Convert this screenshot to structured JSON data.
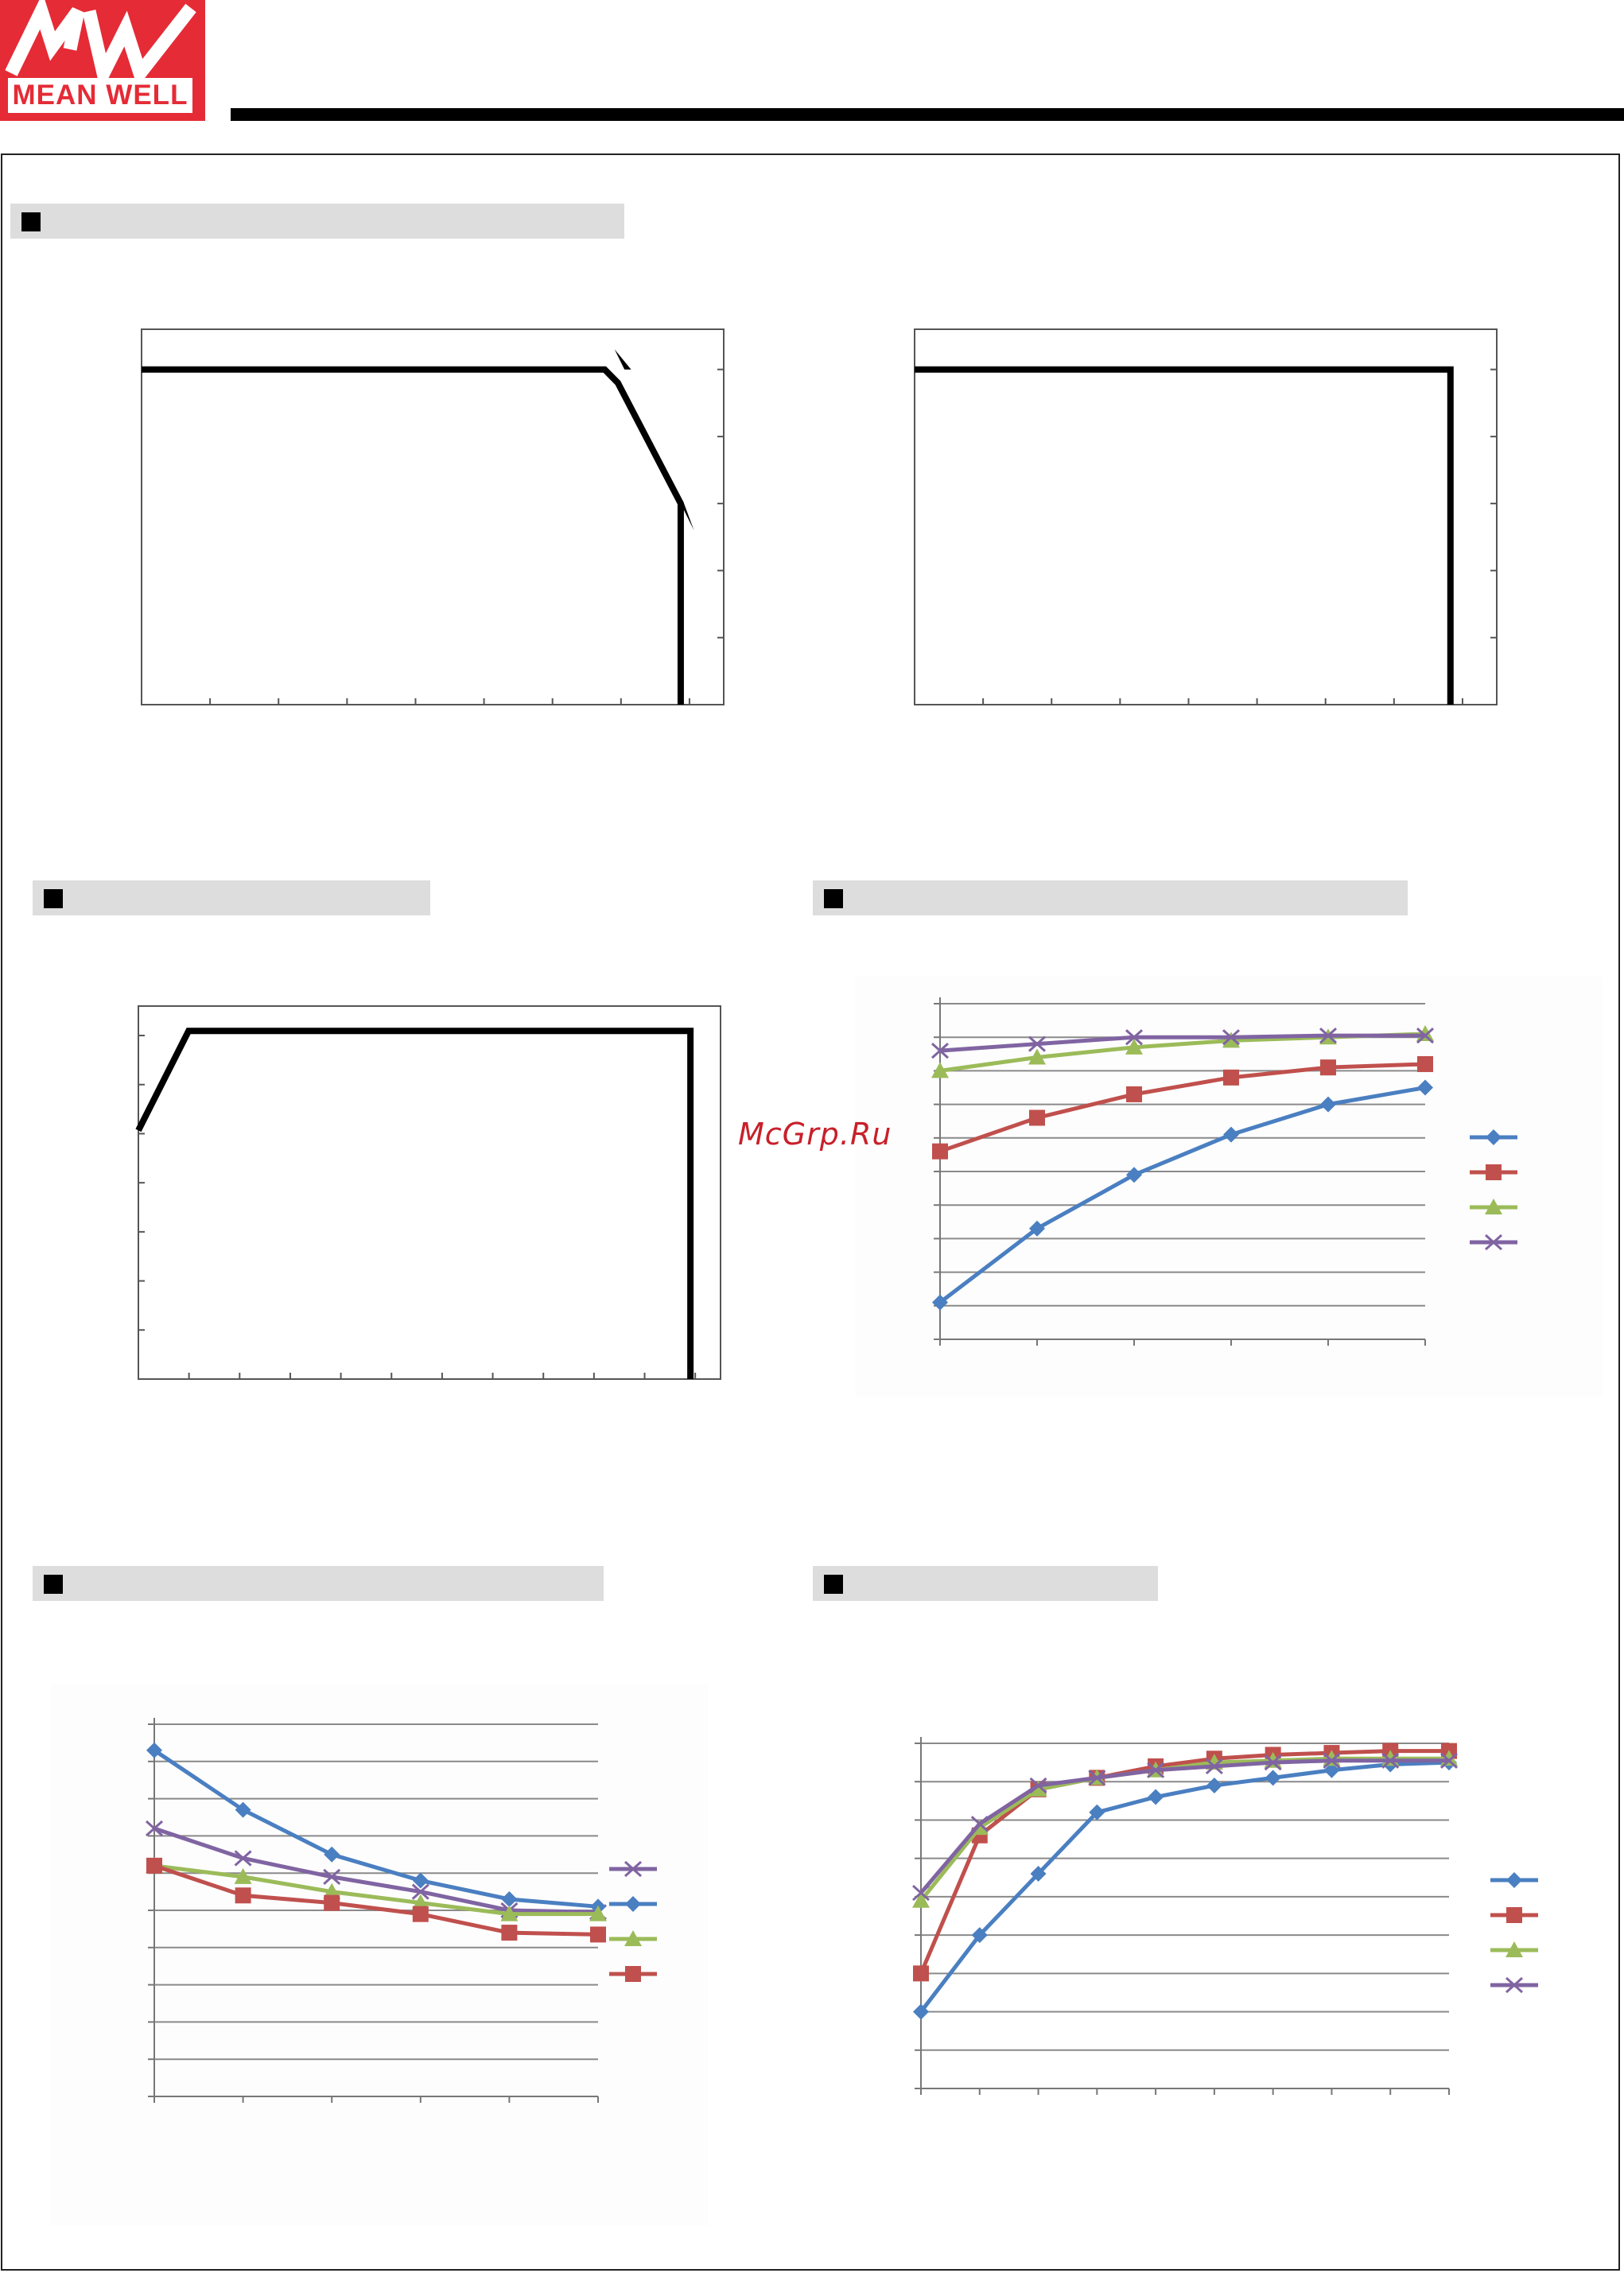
{
  "brand": {
    "logo_text": "MEAN WELL",
    "logo_mark": "MW",
    "red": "#e52b36"
  },
  "watermark": "McGrp.Ru",
  "colors": {
    "blue": "#4a7fc1",
    "red": "#c0504d",
    "green": "#9bbb59",
    "purple": "#8064a2",
    "black": "#000000"
  },
  "chart_data": [
    {
      "id": "derating-temp",
      "type": "line",
      "title": "",
      "x_ticks": 8,
      "y_ticks": 5,
      "x": [
        0,
        7.0,
        7.2,
        8.15,
        8.15
      ],
      "y": [
        5,
        5,
        4.8,
        3.0,
        0
      ],
      "xlim": [
        0,
        8.8
      ],
      "ylim": [
        0,
        5.6
      ],
      "colors": [
        "#000000"
      ]
    },
    {
      "id": "output-vi",
      "type": "line",
      "title": "",
      "x_ticks": 8,
      "y_ticks": 5,
      "x": [
        0,
        8.1,
        8.1
      ],
      "y": [
        5,
        5,
        0
      ],
      "xlim": [
        0,
        8.8
      ],
      "ylim": [
        0,
        5.6
      ],
      "colors": [
        "#000000"
      ]
    },
    {
      "id": "input-derating",
      "type": "line",
      "title": "",
      "x_ticks": 11,
      "y_ticks": 7,
      "x": [
        0,
        1,
        11,
        11
      ],
      "y": [
        5,
        7,
        7,
        0
      ],
      "xlim": [
        0,
        11.6
      ],
      "ylim": [
        0,
        7.5
      ],
      "colors": [
        "#000000"
      ]
    },
    {
      "id": "efficiency-load",
      "type": "line",
      "title": "",
      "x_ticks": 5,
      "y_ticks": 10,
      "categories": [
        0,
        1,
        2,
        3,
        4,
        5
      ],
      "ylim": [
        0,
        10
      ],
      "series": [
        {
          "color": "#4a7fc1",
          "marker": "diamond",
          "values": [
            1.1,
            3.3,
            4.9,
            6.1,
            7.0,
            7.5
          ]
        },
        {
          "color": "#c0504d",
          "marker": "square",
          "values": [
            5.6,
            6.6,
            7.3,
            7.8,
            8.1,
            8.2
          ]
        },
        {
          "color": "#9bbb59",
          "marker": "triangle",
          "values": [
            8.0,
            8.4,
            8.7,
            8.9,
            9.0,
            9.1
          ]
        },
        {
          "color": "#8064a2",
          "marker": "x",
          "values": [
            8.6,
            8.8,
            9.0,
            9.0,
            9.05,
            9.05
          ]
        }
      ],
      "legend": "right"
    },
    {
      "id": "power-loss",
      "type": "line",
      "title": "",
      "x_ticks": 5,
      "y_ticks": 10,
      "categories": [
        0,
        1,
        2,
        3,
        4,
        5
      ],
      "ylim": [
        0,
        10
      ],
      "series": [
        {
          "color": "#8064a2",
          "marker": "x",
          "values": [
            7.2,
            6.4,
            5.9,
            5.5,
            5.0,
            4.95
          ]
        },
        {
          "color": "#4a7fc1",
          "marker": "diamond",
          "values": [
            9.3,
            7.7,
            6.5,
            5.8,
            5.3,
            5.1
          ]
        },
        {
          "color": "#9bbb59",
          "marker": "triangle",
          "values": [
            6.2,
            5.9,
            5.5,
            5.2,
            4.9,
            4.9
          ]
        },
        {
          "color": "#c0504d",
          "marker": "square",
          "values": [
            6.2,
            5.4,
            5.2,
            4.9,
            4.4,
            4.35
          ]
        }
      ],
      "legend": "right"
    },
    {
      "id": "startup-curve",
      "type": "line",
      "title": "",
      "x_ticks": 9,
      "y_ticks": 9,
      "categories": [
        0,
        1,
        2,
        3,
        4,
        5,
        6,
        7,
        8,
        9
      ],
      "ylim": [
        0,
        9
      ],
      "series": [
        {
          "color": "#4a7fc1",
          "marker": "diamond",
          "values": [
            2.0,
            4.0,
            5.6,
            7.2,
            7.6,
            7.9,
            8.1,
            8.3,
            8.45,
            8.5
          ]
        },
        {
          "color": "#c0504d",
          "marker": "square",
          "values": [
            3.0,
            6.6,
            7.8,
            8.1,
            8.4,
            8.6,
            8.7,
            8.75,
            8.8,
            8.8
          ]
        },
        {
          "color": "#9bbb59",
          "marker": "triangle",
          "values": [
            4.9,
            6.8,
            7.8,
            8.1,
            8.3,
            8.5,
            8.55,
            8.6,
            8.6,
            8.6
          ]
        },
        {
          "color": "#8064a2",
          "marker": "x",
          "values": [
            5.1,
            6.9,
            7.9,
            8.1,
            8.3,
            8.4,
            8.5,
            8.55,
            8.55,
            8.55
          ]
        }
      ],
      "legend": "right"
    }
  ]
}
